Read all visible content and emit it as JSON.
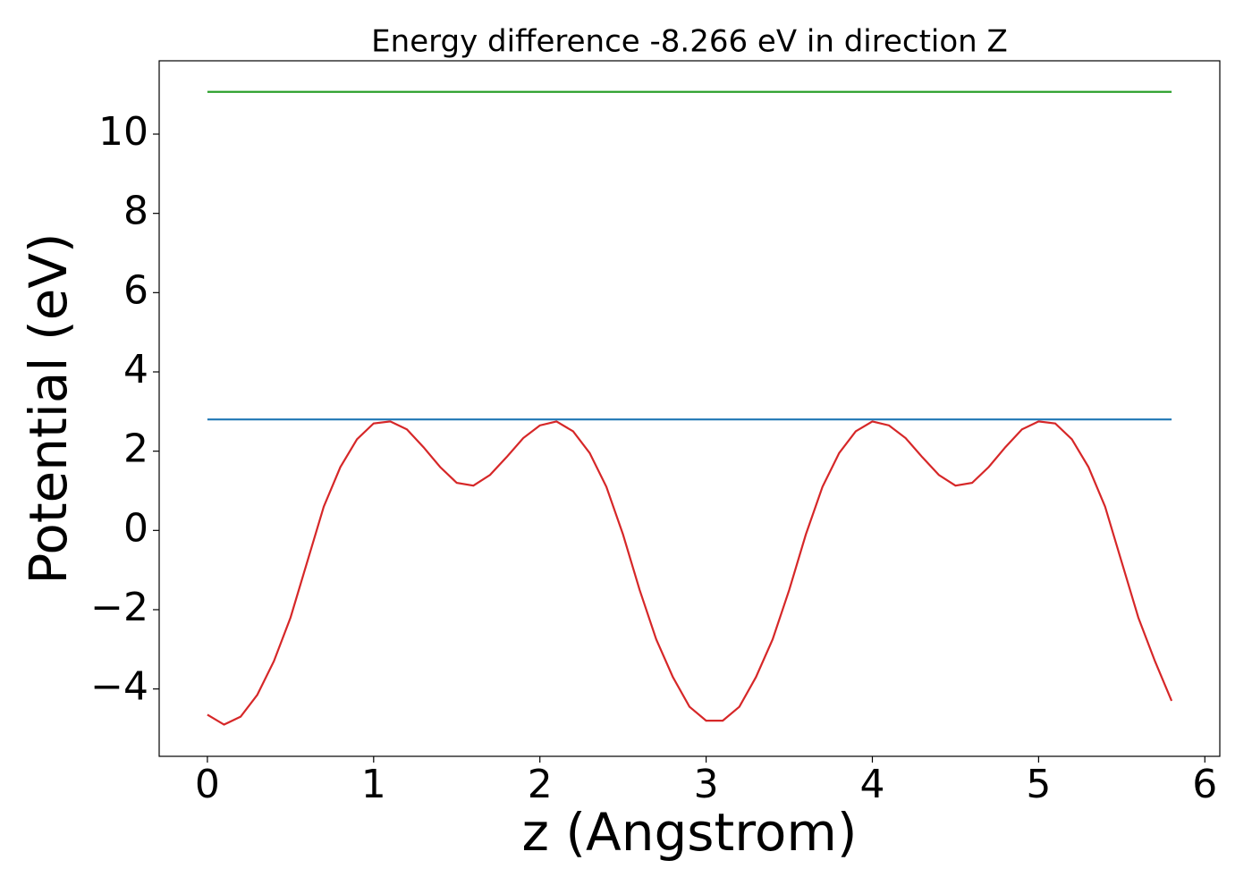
{
  "chart_data": {
    "type": "line",
    "title": "Energy difference -8.266 eV in direction Z",
    "xlabel": "z (Angstrom)",
    "ylabel": "Potential (eV)",
    "xlim": [
      -0.29,
      6.09
    ],
    "ylim": [
      -5.7,
      11.85
    ],
    "xticks": [
      0,
      1,
      2,
      3,
      4,
      5,
      6
    ],
    "yticks": [
      {
        "value": -4,
        "label": "−4"
      },
      {
        "value": -2,
        "label": "−2"
      },
      0,
      2,
      4,
      6,
      8,
      10
    ],
    "grid": false,
    "series": [
      {
        "color": "#d62728",
        "x": [
          0,
          0.1,
          0.2,
          0.3,
          0.4,
          0.5,
          0.6,
          0.7,
          0.8,
          0.9,
          1.0,
          1.1,
          1.2,
          1.3,
          1.4,
          1.5,
          1.6,
          1.7,
          1.8,
          1.9,
          2.0,
          2.1,
          2.2,
          2.3,
          2.4,
          2.5,
          2.6,
          2.7,
          2.8,
          2.9,
          3.0,
          3.1,
          3.2,
          3.3,
          3.4,
          3.5,
          3.6,
          3.7,
          3.8,
          3.9,
          4.0,
          4.1,
          4.2,
          4.3,
          4.4,
          4.5,
          4.6,
          4.7,
          4.8,
          4.9,
          5.0,
          5.1,
          5.2,
          5.3,
          5.4,
          5.5,
          5.6,
          5.7,
          5.8
        ],
        "values": [
          -4.65,
          -4.9,
          -4.7,
          -4.15,
          -3.3,
          -2.2,
          -0.8,
          0.6,
          1.6,
          2.3,
          2.7,
          2.75,
          2.55,
          2.1,
          1.6,
          1.2,
          1.13,
          1.4,
          1.85,
          2.33,
          2.65,
          2.75,
          2.5,
          1.95,
          1.1,
          -0.1,
          -1.5,
          -2.75,
          -3.7,
          -4.45,
          -4.8,
          -4.8,
          -4.45,
          -3.7,
          -2.75,
          -1.5,
          -0.1,
          1.1,
          1.95,
          2.5,
          2.75,
          2.65,
          2.33,
          1.85,
          1.4,
          1.13,
          1.2,
          1.6,
          2.1,
          2.55,
          2.75,
          2.7,
          2.3,
          1.6,
          0.6,
          -0.8,
          -2.2,
          -3.3,
          -4.3
        ]
      },
      {
        "color": "#1f77b4",
        "x": [
          0,
          5.8
        ],
        "values": [
          2.8,
          2.8
        ]
      },
      {
        "color": "#2ca02c",
        "x": [
          0,
          5.8
        ],
        "values": [
          11.066,
          11.066
        ]
      }
    ]
  }
}
